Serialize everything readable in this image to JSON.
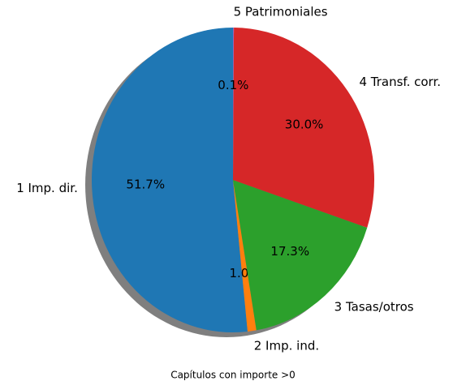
{
  "chart_data": {
    "type": "pie",
    "title": "Capítulos con importe >0",
    "categories": [
      "1 Imp. dir.",
      "2 Imp. ind.",
      "3 Tasas/otros",
      "4 Transf. corr.",
      "5 Patrimoniales"
    ],
    "values": [
      51.7,
      1.0,
      17.3,
      30.0,
      0.1
    ],
    "value_labels": [
      "51.7%",
      "1.0%",
      "17.3%",
      "30.0%",
      "0.1%"
    ],
    "colors": [
      "#1f77b4",
      "#ff7f0e",
      "#2ca02c",
      "#d62728",
      "#9467bd"
    ],
    "shadow": true
  }
}
